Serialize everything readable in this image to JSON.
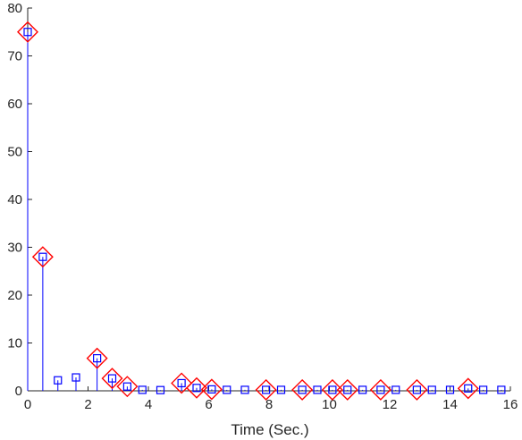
{
  "chart_data": {
    "type": "stem",
    "title": "",
    "xlabel": "Time (Sec.)",
    "ylabel": "",
    "xlim": [
      0,
      16
    ],
    "ylim": [
      0,
      80
    ],
    "xticks": [
      0,
      2,
      4,
      6,
      8,
      10,
      12,
      14,
      16
    ],
    "yticks": [
      0,
      10,
      20,
      30,
      40,
      50,
      60,
      70,
      80
    ],
    "colors": {
      "stems": "#0000ff",
      "square_markers": "#0000ff",
      "diamond_markers": "#ff0000",
      "axes": "#262626"
    },
    "series": [
      {
        "marker": "square",
        "x": [
          0,
          0.5,
          1.0,
          1.6,
          2.3,
          2.8,
          3.3,
          3.8,
          4.4,
          5.1,
          5.6,
          6.1,
          6.6,
          7.2,
          7.9,
          8.4,
          9.1,
          9.6,
          10.1,
          10.6,
          11.1,
          11.7,
          12.2,
          12.9,
          13.4,
          14.0,
          14.6,
          15.1,
          15.7
        ],
        "y": [
          75,
          28,
          2.2,
          2.8,
          6.8,
          2.6,
          0.9,
          0.2,
          0.15,
          1.6,
          0.6,
          0.3,
          0.2,
          0.2,
          0.2,
          0.2,
          0.2,
          0.2,
          0.2,
          0.2,
          0.2,
          0.2,
          0.2,
          0.2,
          0.2,
          0.2,
          0.5,
          0.2,
          0.2
        ]
      },
      {
        "marker": "diamond",
        "x": [
          0,
          0.5,
          2.3,
          2.8,
          3.3,
          5.1,
          5.6,
          6.1,
          7.9,
          9.1,
          10.1,
          10.6,
          11.7,
          12.9,
          14.6
        ],
        "y": [
          75,
          28,
          6.8,
          2.6,
          0.9,
          1.6,
          0.6,
          0.3,
          0.2,
          0.2,
          0.2,
          0.2,
          0.2,
          0.2,
          0.5
        ]
      }
    ]
  }
}
